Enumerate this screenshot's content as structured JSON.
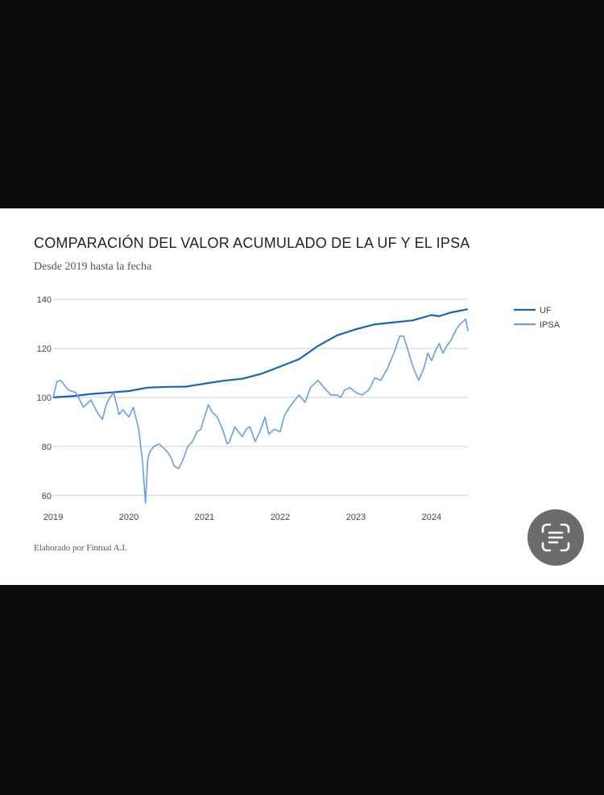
{
  "chart_data": {
    "type": "line",
    "title": "COMPARACIÓN DEL VALOR ACUMULADO DE LA UF Y EL IPSA",
    "subtitle": "Desde 2019 hasta la fecha",
    "footer": "Elaborado por Fintual A.I.",
    "xlim": [
      2019.0,
      2024.48
    ],
    "ylim": [
      56,
      140
    ],
    "y_ticks": [
      140,
      120,
      100,
      80,
      60
    ],
    "x_ticks": [
      "2019",
      "2020",
      "2021",
      "2022",
      "2023",
      "2024"
    ],
    "grid": true,
    "legend_position": "right",
    "series": [
      {
        "name": "UF",
        "color": "#1565c0",
        "x": [
          2019.0,
          2019.25,
          2019.5,
          2019.75,
          2020.0,
          2020.25,
          2020.5,
          2020.75,
          2021.0,
          2021.25,
          2021.5,
          2021.75,
          2022.0,
          2022.25,
          2022.5,
          2022.75,
          2023.0,
          2023.25,
          2023.5,
          2023.75,
          2024.0,
          2024.1,
          2024.25,
          2024.48
        ],
        "values": [
          100,
          100.5,
          101.4,
          102,
          102.6,
          104,
          104.3,
          104.4,
          105.6,
          106.8,
          107.6,
          109.6,
          112.6,
          115.6,
          121,
          125.3,
          127.8,
          129.8,
          130.6,
          131.4,
          133.6,
          133.1,
          134.6,
          136
        ]
      },
      {
        "name": "IPSA",
        "color": "#64a0e6",
        "x": [
          2019.0,
          2019.05,
          2019.1,
          2019.15,
          2019.2,
          2019.3,
          2019.4,
          2019.5,
          2019.58,
          2019.65,
          2019.7,
          2019.75,
          2019.8,
          2019.87,
          2019.92,
          2020.0,
          2020.06,
          2020.13,
          2020.18,
          2020.22,
          2020.25,
          2020.28,
          2020.33,
          2020.4,
          2020.47,
          2020.5,
          2020.55,
          2020.6,
          2020.66,
          2020.72,
          2020.78,
          2020.84,
          2020.9,
          2020.95,
          2021.0,
          2021.05,
          2021.1,
          2021.17,
          2021.25,
          2021.3,
          2021.33,
          2021.4,
          2021.5,
          2021.55,
          2021.6,
          2021.67,
          2021.73,
          2021.8,
          2021.85,
          2021.92,
          2022.0,
          2022.05,
          2022.1,
          2022.17,
          2022.25,
          2022.33,
          2022.4,
          2022.5,
          2022.58,
          2022.67,
          2022.75,
          2022.8,
          2022.85,
          2022.92,
          2023.0,
          2023.08,
          2023.17,
          2023.25,
          2023.33,
          2023.42,
          2023.5,
          2023.58,
          2023.63,
          2023.67,
          2023.75,
          2023.8,
          2023.83,
          2023.9,
          2023.95,
          2024.0,
          2024.05,
          2024.1,
          2024.15,
          2024.2,
          2024.25,
          2024.33,
          2024.38,
          2024.42,
          2024.45,
          2024.48
        ],
        "values": [
          100,
          106.5,
          107,
          105,
          103,
          102,
          96,
          99,
          94,
          91,
          97,
          100,
          102,
          93,
          95,
          92,
          96,
          87,
          74,
          57,
          75,
          78,
          80,
          81,
          79,
          78,
          76,
          72,
          71,
          75,
          80,
          82,
          86,
          87,
          92,
          97,
          94,
          92,
          86,
          81,
          82,
          88,
          84,
          87,
          88,
          82,
          86,
          92,
          85,
          87,
          86,
          92,
          95,
          98,
          101,
          98,
          104,
          107,
          104,
          101,
          101,
          100,
          103,
          104,
          102,
          101,
          103,
          108,
          107,
          112,
          118,
          125,
          125,
          121,
          113,
          109,
          107,
          112,
          118,
          115,
          119,
          122,
          118,
          121,
          123,
          128,
          130,
          131,
          132,
          127
        ]
      }
    ]
  }
}
